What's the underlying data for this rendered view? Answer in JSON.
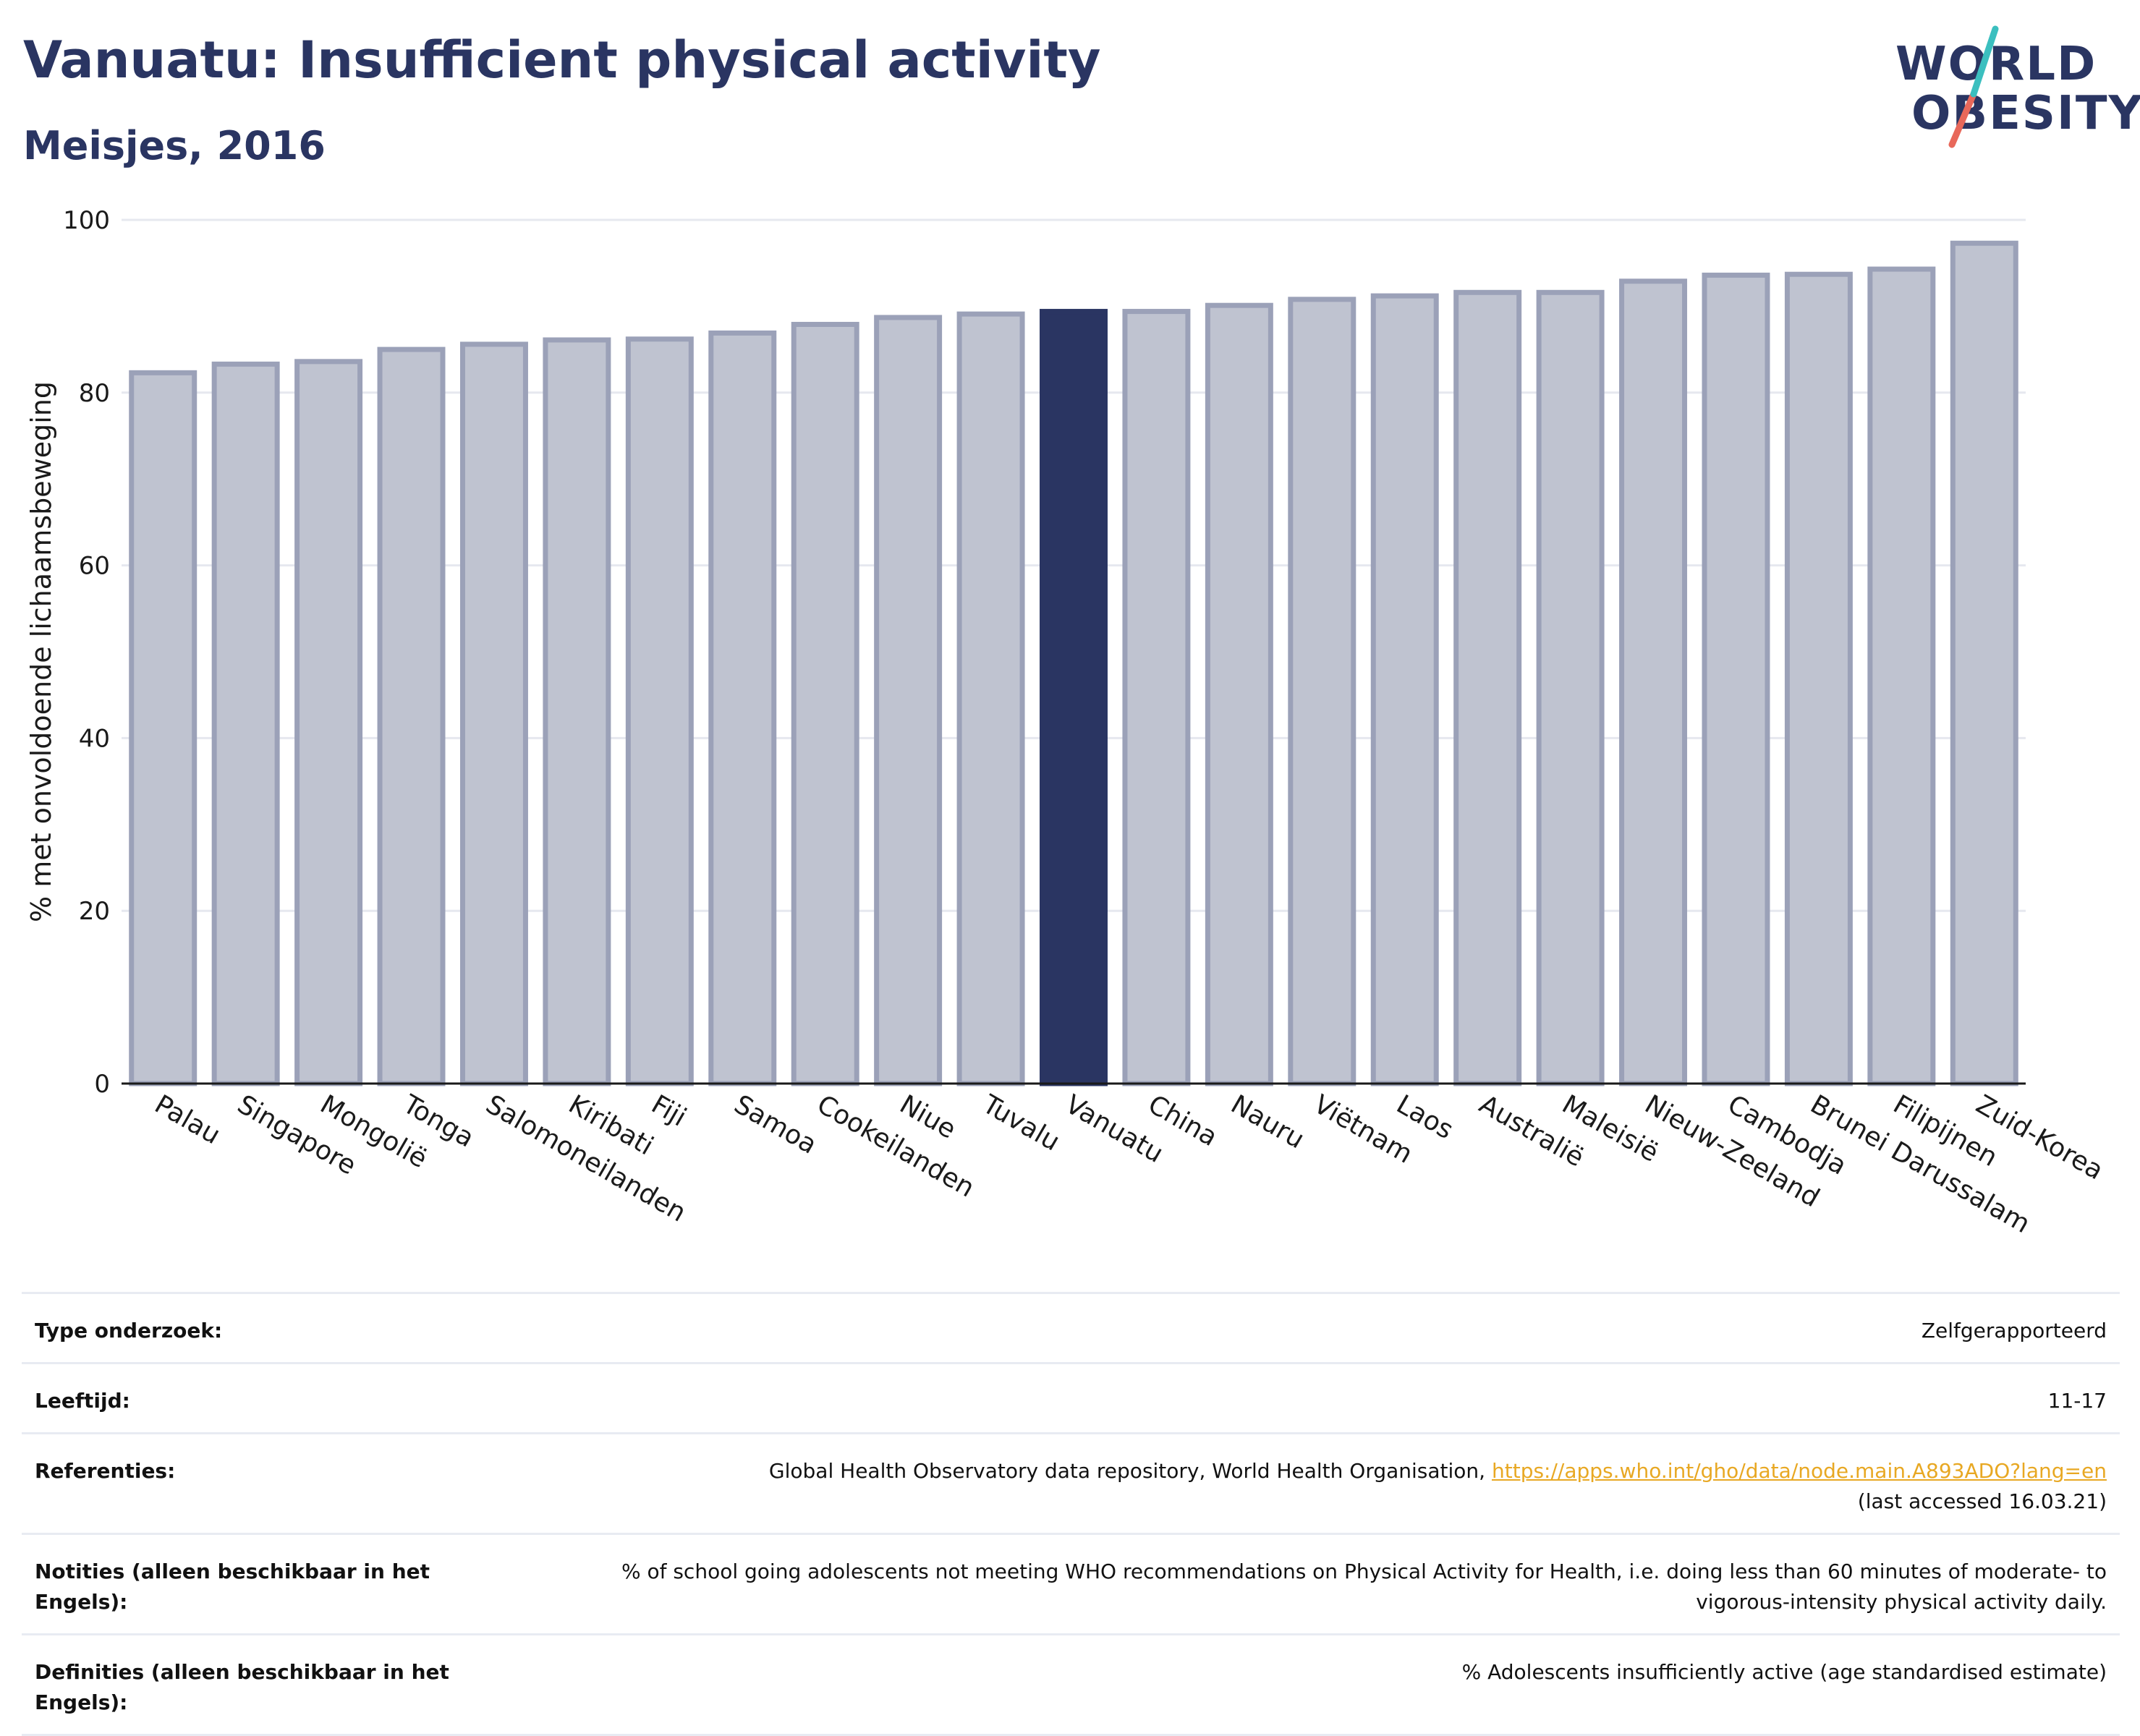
{
  "header": {
    "title": "Vanuatu: Insufficient physical activity",
    "subtitle": "Meisjes, 2016"
  },
  "logo": {
    "line1": "WORLD",
    "line2": "OBESITY"
  },
  "colors": {
    "highlight": "#2a3562",
    "bar_fill": "#bfc3d0",
    "bar_stroke": "#9ba1b8",
    "grid": "#e6e8ef",
    "logo_teal": "#3bbfbf",
    "logo_coral": "#e8685a",
    "link": "#e8a823"
  },
  "chart_data": {
    "type": "bar",
    "categories": [
      "Palau",
      "Singapore",
      "Mongolië",
      "Tonga",
      "Salomoneilanden",
      "Kiribati",
      "Fiji",
      "Samoa",
      "Cookeilanden",
      "Niue",
      "Tuvalu",
      "Vanuatu",
      "China",
      "Nauru",
      "Viëtnam",
      "Laos",
      "Australië",
      "Maleisië",
      "Nieuw-Zeeland",
      "Cambodja",
      "Brunei Darussalam",
      "Filipijnen",
      "Zuid-Korea"
    ],
    "values": [
      82.3,
      83.3,
      83.6,
      85.0,
      85.6,
      86.1,
      86.2,
      86.9,
      87.9,
      88.7,
      89.1,
      89.4,
      89.4,
      90.1,
      90.8,
      91.2,
      91.6,
      91.6,
      92.9,
      93.6,
      93.7,
      94.3,
      97.3
    ],
    "highlight": "Vanuatu",
    "title": "",
    "xlabel": "",
    "ylabel": "% met onvoldoende lichaamsbeweging",
    "ylim": [
      0,
      100
    ],
    "yticks": [
      0,
      20,
      40,
      60,
      80,
      100
    ],
    "grid": true
  },
  "info": {
    "rows": [
      {
        "label": "Type onderzoek:",
        "value": "Zelfgerapporteerd"
      },
      {
        "label": "Leeftijd:",
        "value": "11-17"
      },
      {
        "label": "Referenties:",
        "value_prefix": "Global Health Observatory data repository, World Health Organisation, ",
        "link": "https://apps.who.int/gho/data/node.main.A893ADO?lang=en",
        "value_suffix": "(last accessed 16.03.21)"
      },
      {
        "label": "Notities (alleen beschikbaar in het Engels):",
        "value": "% of school going adolescents not meeting WHO recommendations on Physical Activity for Health, i.e. doing less than 60 minutes of moderate- to vigorous-intensity physical activity daily."
      },
      {
        "label": "Definities (alleen beschikbaar in het Engels):",
        "value": "% Adolescents insufficiently active (age standardised estimate)"
      }
    ]
  }
}
